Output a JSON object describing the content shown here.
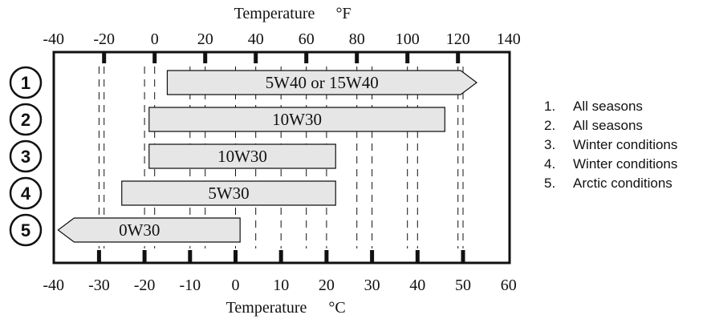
{
  "chart_data": {
    "type": "range-bar",
    "top_axis": {
      "title": "Temperature",
      "unit": "°F",
      "ticks": [
        -40,
        -20,
        0,
        20,
        40,
        60,
        80,
        100,
        120,
        140
      ]
    },
    "bottom_axis": {
      "title": "Temperature",
      "unit": "°C",
      "ticks": [
        -40,
        -30,
        -20,
        -10,
        0,
        10,
        20,
        30,
        40,
        50,
        60
      ]
    },
    "grid": true,
    "rows": [
      {
        "number": "1",
        "label": "5W40 or 15W40",
        "min_c": -15,
        "max_c": 53,
        "arrow": "right"
      },
      {
        "number": "2",
        "label": "10W30",
        "min_c": -19,
        "max_c": 46,
        "arrow": "none"
      },
      {
        "number": "3",
        "label": "10W30",
        "min_c": -19,
        "max_c": 22,
        "arrow": "none"
      },
      {
        "number": "4",
        "label": "5W30",
        "min_c": -25,
        "max_c": 22,
        "arrow": "none"
      },
      {
        "number": "5",
        "label": "0W30",
        "min_c": -39,
        "max_c": 1,
        "arrow": "left"
      }
    ]
  },
  "legend": [
    {
      "number": "1.",
      "text": "All seasons"
    },
    {
      "number": "2.",
      "text": "All seasons"
    },
    {
      "number": "3.",
      "text": "Winter conditions"
    },
    {
      "number": "4.",
      "text": "Winter conditions"
    },
    {
      "number": "5.",
      "text": "Arctic conditions"
    }
  ],
  "colors": {
    "bar_fill": "#e6e6e6",
    "stroke": "#111111",
    "background": "#ffffff"
  }
}
